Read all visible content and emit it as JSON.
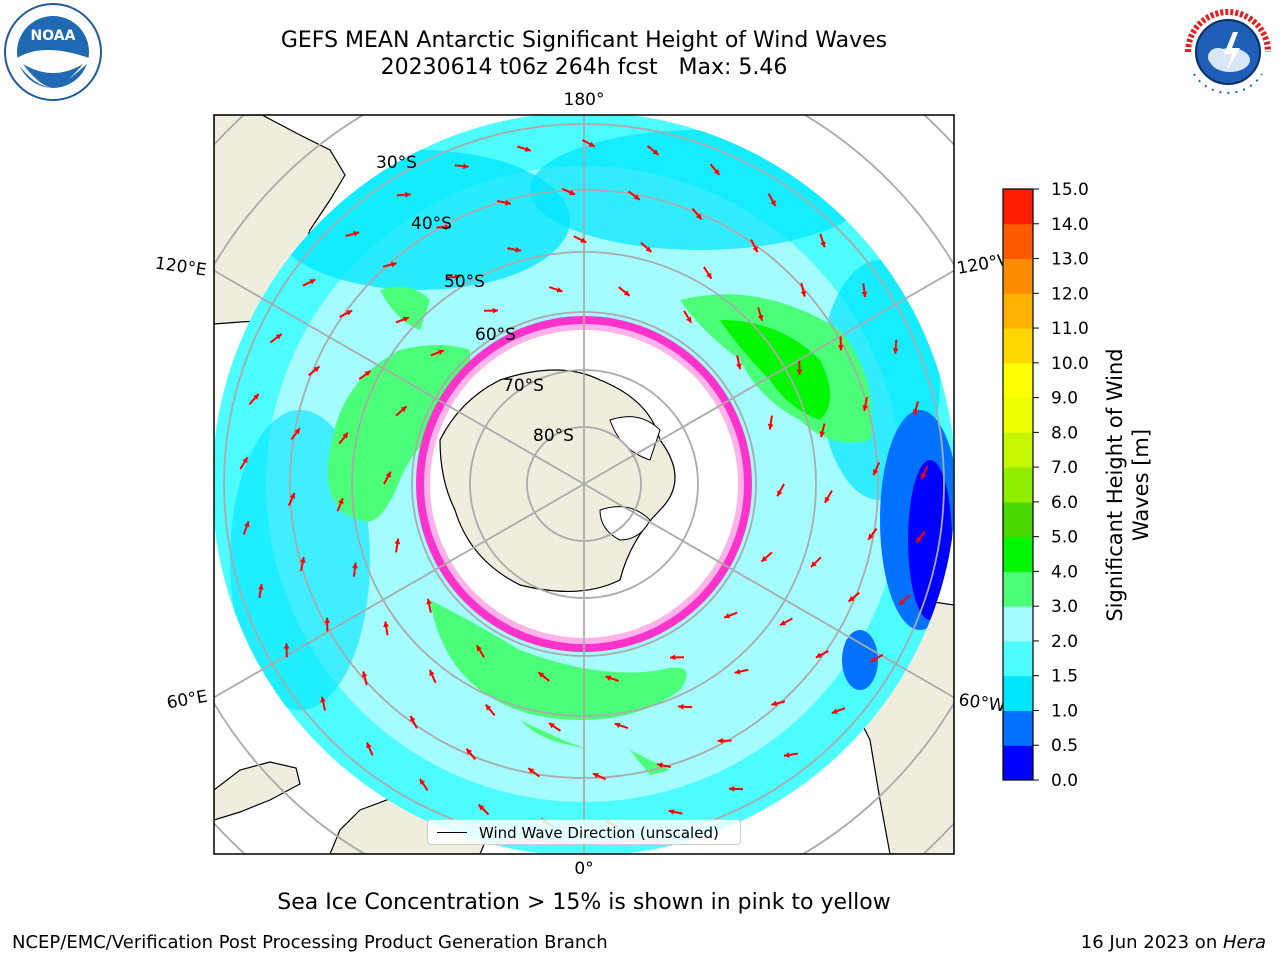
{
  "title_line1": "GEFS MEAN Antarctic Significant Height of Wind Waves",
  "title_line2": "20230614 t06z 264h fcst   Max: 5.46",
  "noaa_logo": {
    "text": "NOAA",
    "ring_text": "NATIONAL OCEANIC AND ATMOSPHERIC ADMINISTRATION · U.S. DEPARTMENT OF COMMERCE"
  },
  "nws_logo": {
    "ring_text": "NATIONAL WEATHER SERVICE"
  },
  "longitude_labels": {
    "top": "180°",
    "bottom": "0°",
    "upper_left": "120°E",
    "lower_left": "60°E",
    "upper_right": "120°W",
    "lower_right": "60°W"
  },
  "latitude_labels": [
    "30°S",
    "40°S",
    "50°S",
    "60°S",
    "70°S",
    "80°S"
  ],
  "legend": {
    "line_label": "Wind Wave Direction (unscaled)"
  },
  "colorbar": {
    "label": "Significant Height of Wind Waves [m]",
    "ticks": [
      "0.0",
      "0.5",
      "1.0",
      "1.5",
      "2.0",
      "3.0",
      "4.0",
      "5.0",
      "6.0",
      "7.0",
      "8.0",
      "9.0",
      "10.0",
      "11.0",
      "12.0",
      "13.0",
      "14.0",
      "15.0"
    ],
    "colors": [
      "#0000ff",
      "#0072ff",
      "#00e5ff",
      "#4cfcff",
      "#a4fcff",
      "#4cff78",
      "#00f700",
      "#4cd900",
      "#90ef00",
      "#c6f600",
      "#eeff00",
      "#ffff00",
      "#ffd700",
      "#ffb200",
      "#ff8b00",
      "#ff5a00",
      "#ff1e00"
    ]
  },
  "caption": "Sea Ice Concentration > 15% is shown in pink to yellow",
  "footer_left": "NCEP/EMC/Verification Post Processing Product Generation Branch",
  "footer_date": "16 Jun 2023 on ",
  "footer_host": "Hera",
  "palette": {
    "land": "#efedde",
    "ocean_light": "#a4fcff",
    "ocean_mid": "#4cfcff",
    "ocean_cyan": "#00e5ff",
    "green": "#4cff78",
    "arrow": "#ff0000",
    "ice_edge": "#ff33cc"
  }
}
